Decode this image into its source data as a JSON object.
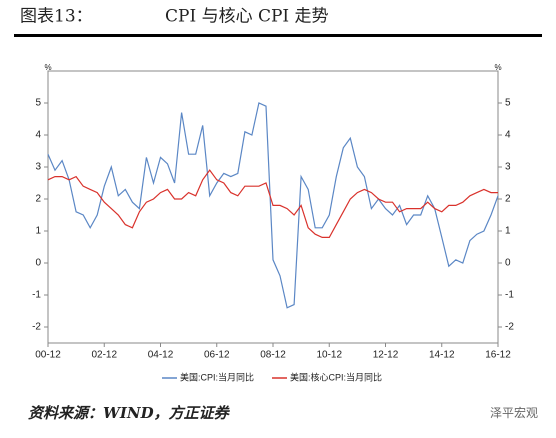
{
  "figure_label": "图表13：",
  "source": "资料来源：WIND，方正证券",
  "watermark": "泽平宏观",
  "chart_data": {
    "type": "line",
    "title": "CPI 与核心 CPI 走势",
    "categories": [
      "00-12",
      null,
      null,
      null,
      null,
      null,
      null,
      null,
      "02-12",
      null,
      null,
      null,
      null,
      null,
      null,
      null,
      "04-12",
      null,
      null,
      null,
      null,
      null,
      null,
      null,
      "06-12",
      null,
      null,
      null,
      null,
      null,
      null,
      null,
      "08-12",
      null,
      null,
      null,
      null,
      null,
      null,
      null,
      "10-12",
      null,
      null,
      null,
      null,
      null,
      null,
      null,
      "12-12",
      null,
      null,
      null,
      null,
      null,
      null,
      null,
      "14-12",
      null,
      null,
      null,
      null,
      null,
      null,
      null,
      "16-12"
    ],
    "series": [
      {
        "name": "美国:CPI:当月同比",
        "color": "#5b87c5",
        "values": [
          3.4,
          2.9,
          3.2,
          2.6,
          1.6,
          1.5,
          1.1,
          1.5,
          2.4,
          3.0,
          2.1,
          2.3,
          1.9,
          1.7,
          3.3,
          2.5,
          3.3,
          3.1,
          2.5,
          4.7,
          3.4,
          3.4,
          4.3,
          2.1,
          2.5,
          2.8,
          2.7,
          2.8,
          4.1,
          4.0,
          5.0,
          4.9,
          0.1,
          -0.4,
          -1.4,
          -1.3,
          2.7,
          2.3,
          1.1,
          1.1,
          1.5,
          2.7,
          3.6,
          3.9,
          3.0,
          2.7,
          1.7,
          2.0,
          1.7,
          1.5,
          1.8,
          1.2,
          1.5,
          1.5,
          2.1,
          1.7,
          0.8,
          -0.1,
          0.1,
          0.0,
          0.7,
          0.9,
          1.0,
          1.5,
          2.1
        ]
      },
      {
        "name": "美国:核心CPI:当月同比",
        "color": "#d9322c",
        "values": [
          2.6,
          2.7,
          2.7,
          2.6,
          2.7,
          2.4,
          2.3,
          2.2,
          1.9,
          1.7,
          1.5,
          1.2,
          1.1,
          1.6,
          1.9,
          2.0,
          2.2,
          2.3,
          2.0,
          2.0,
          2.2,
          2.1,
          2.6,
          2.9,
          2.6,
          2.5,
          2.2,
          2.1,
          2.4,
          2.4,
          2.4,
          2.5,
          1.8,
          1.8,
          1.7,
          1.5,
          1.8,
          1.1,
          0.9,
          0.8,
          0.8,
          1.2,
          1.6,
          2.0,
          2.2,
          2.3,
          2.2,
          2.0,
          1.9,
          1.9,
          1.6,
          1.7,
          1.7,
          1.7,
          1.9,
          1.7,
          1.6,
          1.8,
          1.8,
          1.9,
          2.1,
          2.2,
          2.3,
          2.2,
          2.2
        ]
      }
    ],
    "ylabel": "%",
    "y2label": "%",
    "ylim": [
      -2.5,
      6
    ],
    "yticks": [
      -2,
      -1,
      0,
      1,
      2,
      3,
      4,
      5
    ],
    "y2lim": [
      -2.5,
      6
    ],
    "y2ticks": [
      -2,
      -1,
      0,
      1,
      2,
      3,
      4,
      5
    ],
    "legend": "bottom"
  }
}
